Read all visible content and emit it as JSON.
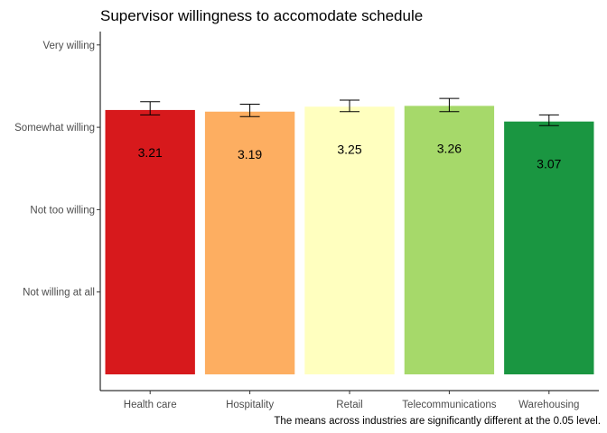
{
  "chart_data": {
    "type": "bar",
    "title": "Supervisor willingness to accomodate schedule",
    "caption": "The means across industries are significantly different at the 0.05 level.",
    "xlabel": "",
    "ylabel": "",
    "categories": [
      "Health care",
      "Hospitality",
      "Retail",
      "Telecommunications",
      "Warehousing"
    ],
    "values": [
      3.21,
      3.19,
      3.25,
      3.26,
      3.07
    ],
    "value_labels": [
      "3.21",
      "3.19",
      "3.25",
      "3.26",
      "3.07"
    ],
    "error_low": [
      3.15,
      3.13,
      3.19,
      3.19,
      3.02
    ],
    "error_high": [
      3.31,
      3.28,
      3.33,
      3.35,
      3.15
    ],
    "colors": [
      "#d7191c",
      "#fdae61",
      "#ffffbf",
      "#a6d96a",
      "#1a9641"
    ],
    "y_ticks": [
      {
        "value": 1,
        "label": "Not willing at all"
      },
      {
        "value": 2,
        "label": "Not too willing"
      },
      {
        "value": 3,
        "label": "Somewhat willing"
      },
      {
        "value": 4,
        "label": "Very willing"
      }
    ],
    "ylim": [
      0,
      4.2
    ],
    "grid": false,
    "legend": "none"
  }
}
